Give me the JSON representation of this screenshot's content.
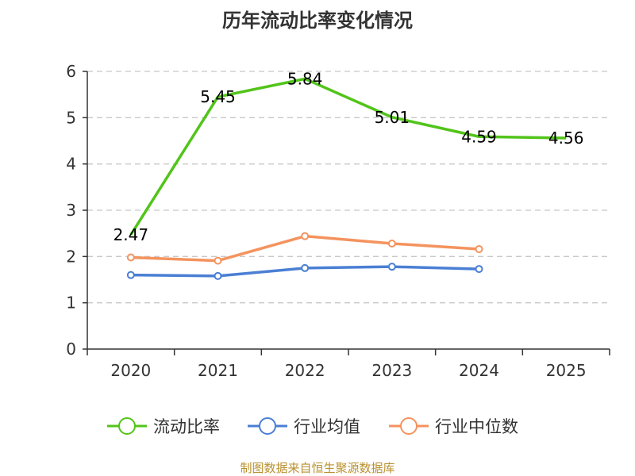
{
  "chart_data": {
    "type": "line",
    "title": "历年流动比率变化情况",
    "categories": [
      "2020",
      "2021",
      "2022",
      "2023",
      "2024",
      "2025"
    ],
    "ylim": [
      0,
      6
    ],
    "yticks": [
      0,
      1,
      2,
      3,
      4,
      5,
      6
    ],
    "grid": true,
    "series": [
      {
        "name": "流动比率",
        "color": "#52c41a",
        "markers": false,
        "labels": true,
        "values": [
          2.47,
          5.45,
          5.84,
          5.01,
          4.59,
          4.56
        ]
      },
      {
        "name": "行业均值",
        "color": "#4a7fd4",
        "markers": true,
        "labels": false,
        "values": [
          1.6,
          1.58,
          1.75,
          1.78,
          1.73,
          null
        ]
      },
      {
        "name": "行业中位数",
        "color": "#f4935e",
        "markers": true,
        "labels": false,
        "values": [
          1.98,
          1.91,
          2.44,
          2.28,
          2.16,
          null
        ]
      }
    ],
    "data_labels": [
      "2.47",
      "5.45",
      "5.84",
      "5.01",
      "4.59",
      "4.56"
    ],
    "legend_position": "bottom",
    "source": "制图数据来自恒生聚源数据库"
  }
}
